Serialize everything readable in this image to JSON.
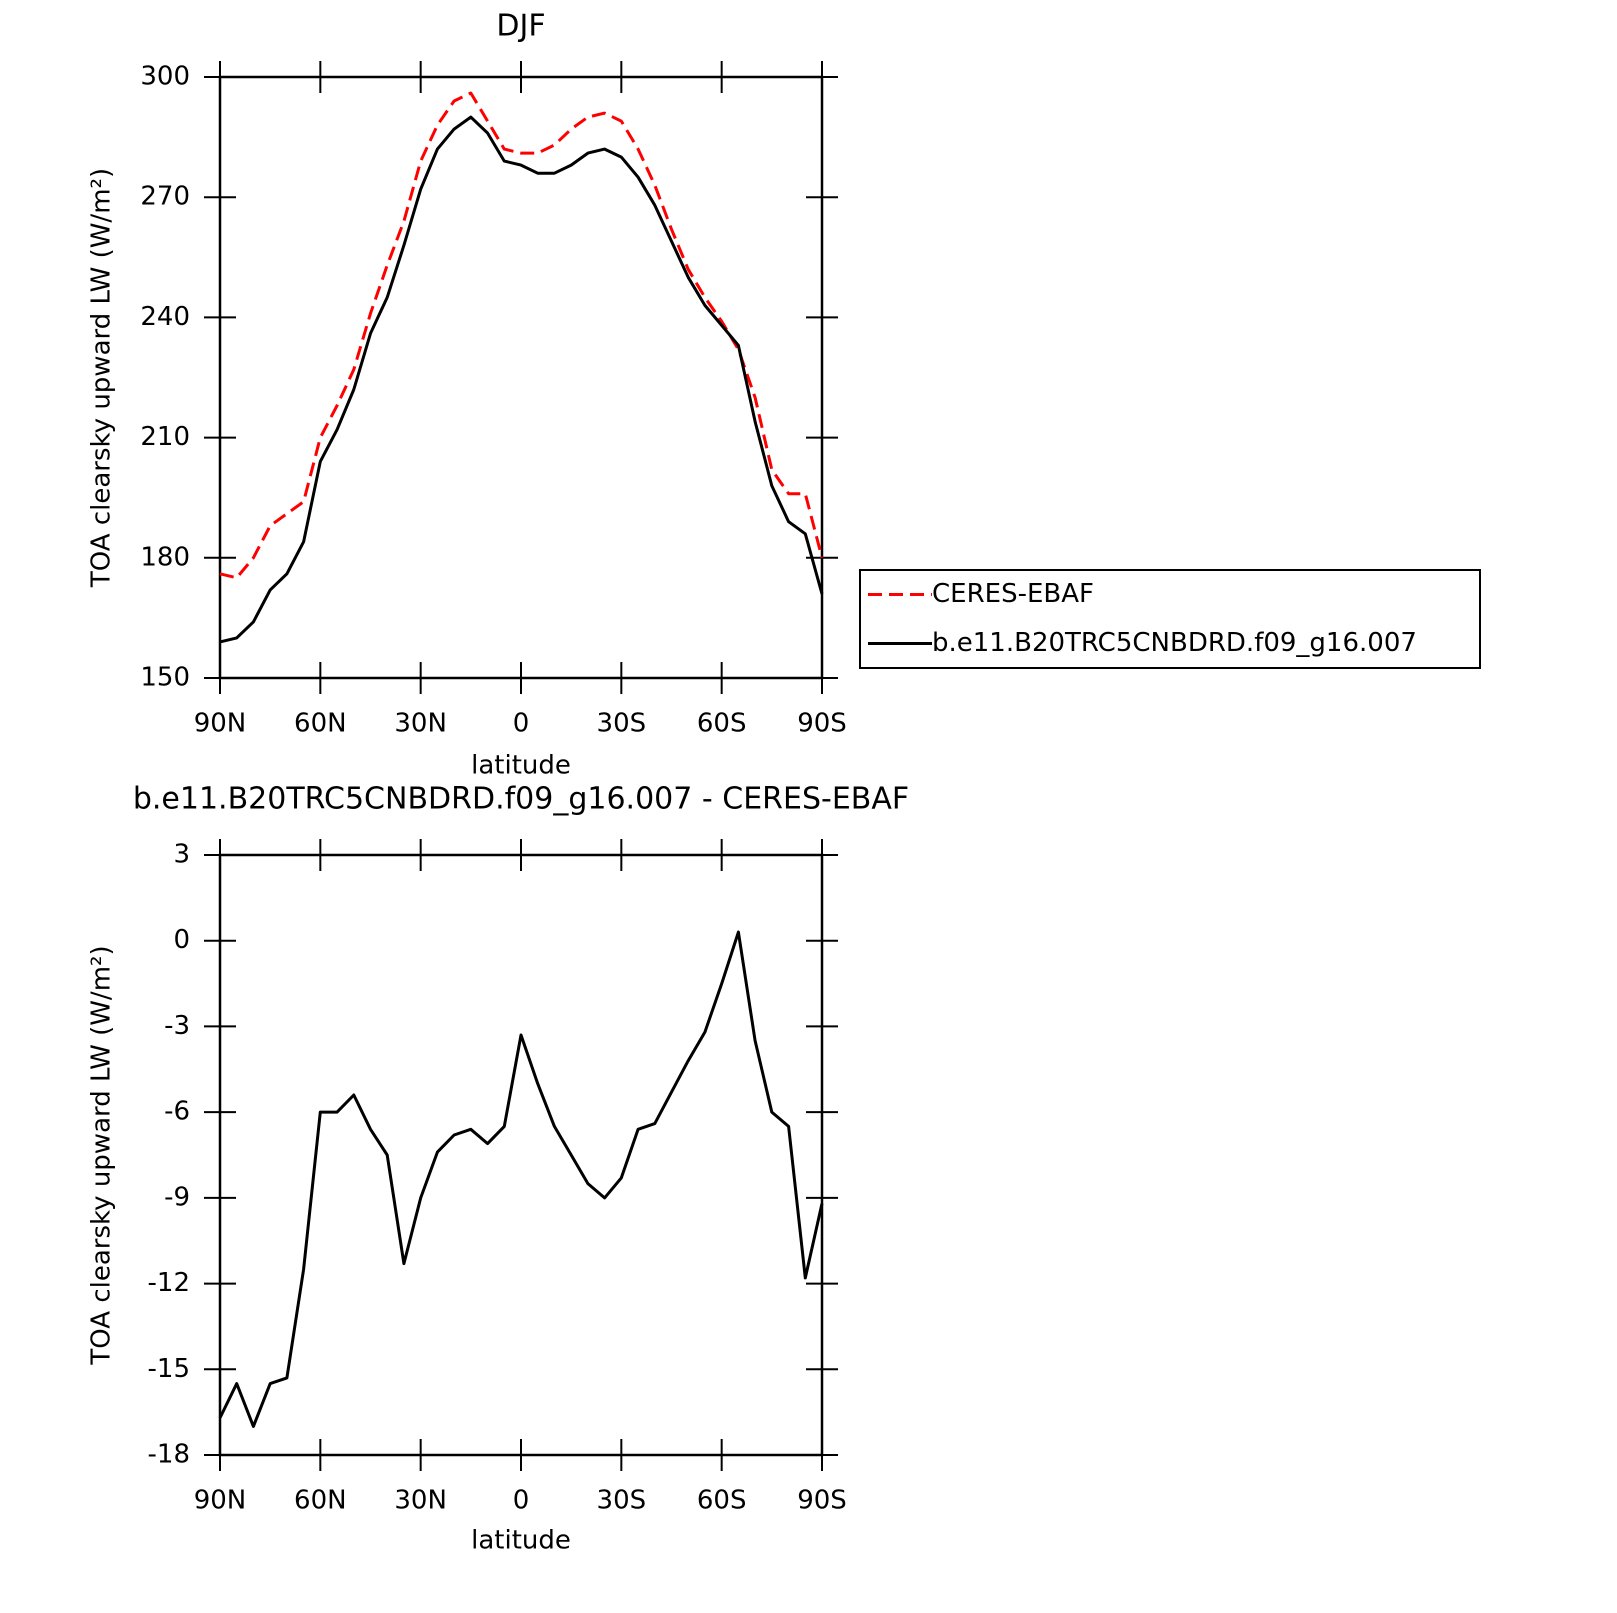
{
  "chart_data": [
    {
      "type": "line",
      "title": "DJF",
      "xlabel": "latitude",
      "ylabel": "TOA clearsky upward LW (W/m²)",
      "x": [
        90,
        85,
        80,
        75,
        70,
        65,
        60,
        55,
        50,
        45,
        40,
        35,
        30,
        25,
        20,
        15,
        10,
        5,
        0,
        -5,
        -10,
        -15,
        -20,
        -25,
        -30,
        -35,
        -40,
        -45,
        -50,
        -55,
        -60,
        -65,
        -70,
        -75,
        -80,
        -85,
        -90
      ],
      "series": [
        {
          "name": "CERES-EBAF",
          "color": "#ff0000",
          "linestyle": "dashed",
          "values": [
            176,
            175,
            180,
            188,
            191,
            194,
            210,
            218,
            227,
            241,
            253,
            264,
            279,
            288,
            294,
            296,
            289,
            282,
            281,
            281,
            283,
            287,
            290,
            291,
            289,
            282,
            273,
            262,
            252,
            245,
            239,
            232,
            220,
            202,
            196,
            196,
            180
          ]
        },
        {
          "name": "b.e11.B20TRC5CNBDRD.f09_g16.007",
          "color": "#000000",
          "linestyle": "solid",
          "values": [
            159,
            160,
            164,
            172,
            176,
            184,
            204,
            212,
            222,
            236,
            245,
            258,
            272,
            282,
            287,
            290,
            286,
            279,
            278,
            276,
            276,
            278,
            281,
            282,
            280,
            275,
            268,
            259,
            250,
            243,
            238,
            233,
            214,
            198,
            189,
            186,
            171
          ]
        }
      ],
      "xlim": [
        90,
        -90
      ],
      "xticks": [
        {
          "value": 90,
          "label": "90N"
        },
        {
          "value": 60,
          "label": "60N"
        },
        {
          "value": 30,
          "label": "30N"
        },
        0,
        {
          "value": -30,
          "label": "30S"
        },
        {
          "value": -60,
          "label": "60S"
        },
        {
          "value": -90,
          "label": "90S"
        }
      ],
      "ylim": [
        150,
        300
      ],
      "yticks": [
        150,
        180,
        210,
        240,
        270,
        300
      ],
      "legend": "right"
    },
    {
      "type": "line",
      "title": "b.e11.B20TRC5CNBDRD.f09_g16.007 - CERES-EBAF",
      "xlabel": "latitude",
      "ylabel": "TOA clearsky upward LW (W/m²)",
      "x": [
        90,
        85,
        80,
        75,
        70,
        65,
        60,
        55,
        50,
        45,
        40,
        35,
        30,
        25,
        20,
        15,
        10,
        5,
        0,
        -5,
        -10,
        -15,
        -20,
        -25,
        -30,
        -35,
        -40,
        -45,
        -50,
        -55,
        -60,
        -65,
        -70,
        -75,
        -80,
        -85,
        -90
      ],
      "series": [
        {
          "color": "#000000",
          "linestyle": "solid",
          "values": [
            -16.7,
            -15.5,
            -17,
            -15.5,
            -15.3,
            -11.5,
            -6,
            -6,
            -5.4,
            -6.6,
            -7.5,
            -11.3,
            -9,
            -7.4,
            -6.8,
            -6.6,
            -7.1,
            -6.5,
            -3.3,
            -5,
            -6.5,
            -7.5,
            -8.5,
            -9,
            -8.3,
            -6.6,
            -6.4,
            -5.3,
            -4.2,
            -3.2,
            -1.5,
            0.3,
            -3.5,
            -6,
            -6.5,
            -11.8,
            -9.2
          ]
        }
      ],
      "xlim": [
        90,
        -90
      ],
      "xticks": [
        {
          "value": 90,
          "label": "90N"
        },
        {
          "value": 60,
          "label": "60N"
        },
        {
          "value": 30,
          "label": "30N"
        },
        0,
        {
          "value": -30,
          "label": "30S"
        },
        {
          "value": -60,
          "label": "60S"
        },
        {
          "value": -90,
          "label": "90S"
        }
      ],
      "ylim": [
        -18,
        3
      ],
      "yticks": [
        -18,
        -15,
        -12,
        -9,
        -6,
        -3,
        0,
        3
      ]
    }
  ]
}
